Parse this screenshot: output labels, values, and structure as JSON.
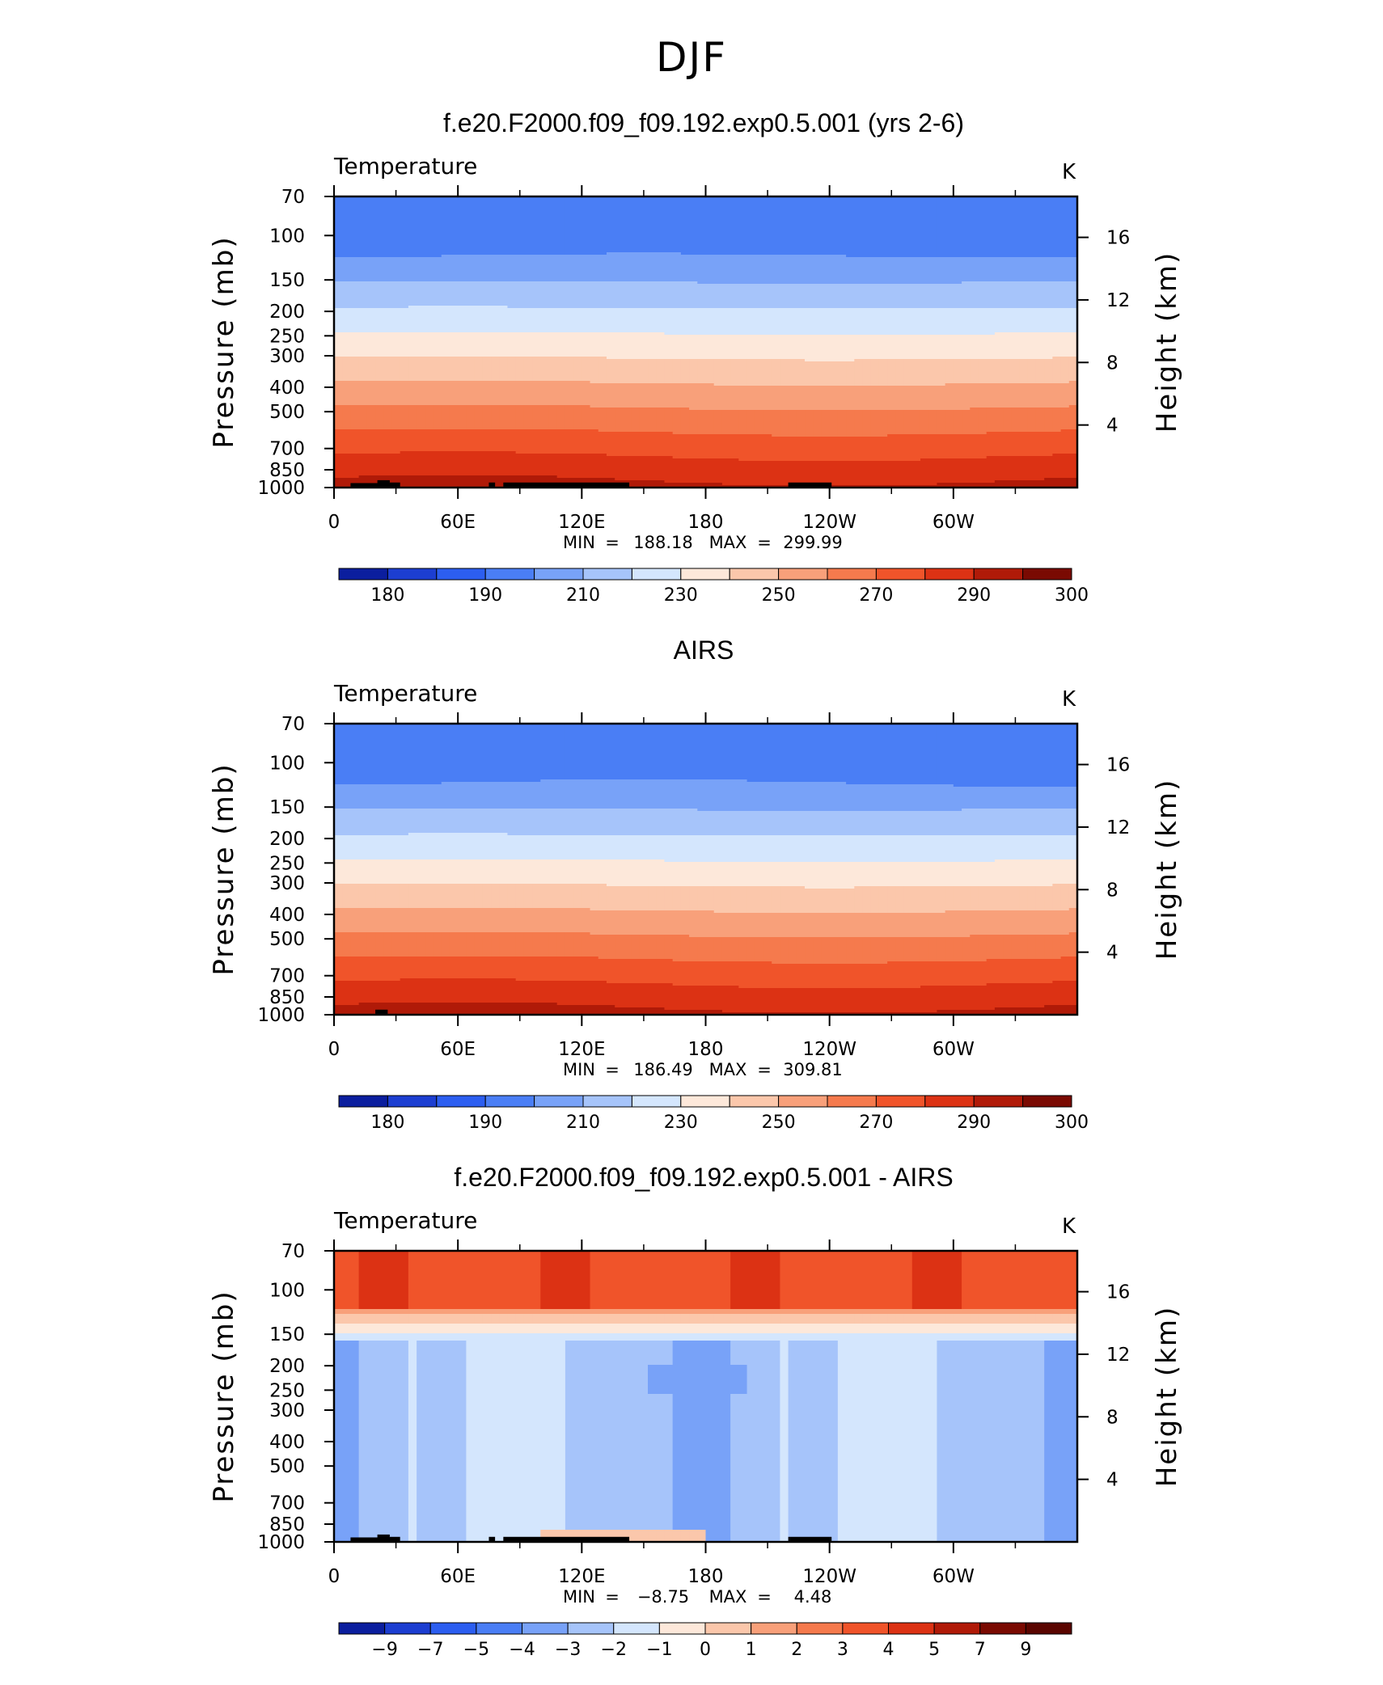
{
  "figure": {
    "title": "DJF"
  },
  "chart_data": [
    {
      "type": "heatmap",
      "title": "f.e20.F2000.f09_f09.192.exp0.5.001 (yrs 2-6)",
      "subtitle_left": "Temperature",
      "units": "K",
      "xlabel": "",
      "ylabel": "Pressure (mb)",
      "ylabel_right": "Height (km)",
      "x_ticks": [
        "0",
        "60E",
        "120E",
        "180",
        "120W",
        "60W"
      ],
      "y_ticks": [
        "70",
        "100",
        "150",
        "200",
        "250",
        "300",
        "400",
        "500",
        "700",
        "850",
        "1000"
      ],
      "y_ticks_right": [
        "16",
        "12",
        "8",
        "4"
      ],
      "min_label": "MIN",
      "min_value": "188.18",
      "max_label": "MAX",
      "max_value": "299.99",
      "colorbar_labels": [
        "180",
        "190",
        "210",
        "230",
        "250",
        "270",
        "290",
        "300"
      ],
      "colors": [
        "#0b1e9e",
        "#1c3ed1",
        "#2c5ef0",
        "#4a7ef5",
        "#78a2f8",
        "#a6c4fa",
        "#d4e6fd",
        "#fde8da",
        "#fbc7ab",
        "#f8a07a",
        "#f57a4d",
        "#f0542a",
        "#dc3214",
        "#b01a08",
        "#7a0a02"
      ]
    },
    {
      "type": "heatmap",
      "title": "AIRS",
      "subtitle_left": "Temperature",
      "units": "K",
      "xlabel": "",
      "ylabel": "Pressure (mb)",
      "ylabel_right": "Height (km)",
      "x_ticks": [
        "0",
        "60E",
        "120E",
        "180",
        "120W",
        "60W"
      ],
      "y_ticks": [
        "70",
        "100",
        "150",
        "200",
        "250",
        "300",
        "400",
        "500",
        "700",
        "850",
        "1000"
      ],
      "y_ticks_right": [
        "16",
        "12",
        "8",
        "4"
      ],
      "min_label": "MIN",
      "min_value": "186.49",
      "max_label": "MAX",
      "max_value": "309.81",
      "colorbar_labels": [
        "180",
        "190",
        "210",
        "230",
        "250",
        "270",
        "290",
        "300"
      ],
      "colors": [
        "#0b1e9e",
        "#1c3ed1",
        "#2c5ef0",
        "#4a7ef5",
        "#78a2f8",
        "#a6c4fa",
        "#d4e6fd",
        "#fde8da",
        "#fbc7ab",
        "#f8a07a",
        "#f57a4d",
        "#f0542a",
        "#dc3214",
        "#b01a08",
        "#7a0a02"
      ]
    },
    {
      "type": "heatmap",
      "title": "f.e20.F2000.f09_f09.192.exp0.5.001 - AIRS",
      "subtitle_left": "Temperature",
      "units": "K",
      "xlabel": "",
      "ylabel": "Pressure (mb)",
      "ylabel_right": "Height (km)",
      "x_ticks": [
        "0",
        "60E",
        "120E",
        "180",
        "120W",
        "60W"
      ],
      "y_ticks": [
        "70",
        "100",
        "150",
        "200",
        "250",
        "300",
        "400",
        "500",
        "700",
        "850",
        "1000"
      ],
      "y_ticks_right": [
        "16",
        "12",
        "8",
        "4"
      ],
      "min_label": "MIN",
      "min_value": "−8.75",
      "max_label": "MAX",
      "max_value": "4.48",
      "colorbar_labels": [
        "−9",
        "−7",
        "−5",
        "−4",
        "−3",
        "−2",
        "−1",
        "0",
        "1",
        "2",
        "3",
        "4",
        "5",
        "7",
        "9"
      ],
      "colors": [
        "#0b1e9e",
        "#1c3ed1",
        "#2c5ef0",
        "#4a7ef5",
        "#78a2f8",
        "#a6c4fa",
        "#d4e6fd",
        "#fde8da",
        "#fbc7ab",
        "#f8a07a",
        "#f57a4d",
        "#f0542a",
        "#dc3214",
        "#b01a08",
        "#7a0a02",
        "#5a0500"
      ]
    }
  ]
}
